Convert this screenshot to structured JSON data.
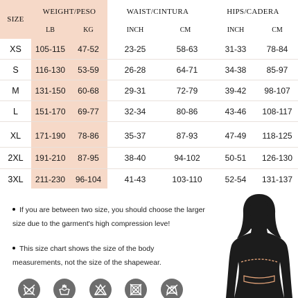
{
  "table": {
    "size_header": "SIZE",
    "weight_header": "WEIGHT/PESO",
    "waist_header": "WAIST/CINTURA",
    "hips_header": "HIPS/CADERA",
    "sub": {
      "lb": "LB",
      "kg": "KG",
      "inch1": "INCH",
      "cm1": "CM",
      "inch2": "INCH",
      "cm2": "CM"
    },
    "rows": [
      {
        "size": "XS",
        "lb": "105-115",
        "kg": "47-52",
        "waist_in": "23-25",
        "waist_cm": "58-63",
        "hips_in": "31-33",
        "hips_cm": "78-84"
      },
      {
        "size": "S",
        "lb": "116-130",
        "kg": "53-59",
        "waist_in": "26-28",
        "waist_cm": "64-71",
        "hips_in": "34-38",
        "hips_cm": "85-97"
      },
      {
        "size": "M",
        "lb": "131-150",
        "kg": "60-68",
        "waist_in": "29-31",
        "waist_cm": "72-79",
        "hips_in": "39-42",
        "hips_cm": "98-107"
      },
      {
        "size": "L",
        "lb": "151-170",
        "kg": "69-77",
        "waist_in": "32-34",
        "waist_cm": "80-86",
        "hips_in": "43-46",
        "hips_cm": "108-117"
      },
      {
        "size": "XL",
        "lb": "171-190",
        "kg": "78-86",
        "waist_in": "35-37",
        "waist_cm": "87-93",
        "hips_in": "47-49",
        "hips_cm": "118-125"
      },
      {
        "size": "2XL",
        "lb": "191-210",
        "kg": "87-95",
        "waist_in": "38-40",
        "waist_cm": "94-102",
        "hips_in": "50-51",
        "hips_cm": "126-130"
      },
      {
        "size": "3XL",
        "lb": "211-230",
        "kg": "96-104",
        "waist_in": "41-43",
        "waist_cm": "103-110",
        "hips_in": "52-54",
        "hips_cm": "131-137"
      }
    ]
  },
  "notes": {
    "note1_line1": "If you are between two size, you should choose the larger",
    "note1_line2": "size due to the garment's high compression leve!",
    "note2_line1": "This size chart shows the size of the body",
    "note2_line2": "measurements, not the size of the shapewear."
  },
  "care_icons": [
    "no-wash-icon",
    "hand-wash-icon",
    "no-bleach-icon",
    "no-tumble-dry-icon",
    "no-iron-icon"
  ],
  "colors": {
    "header_fill": "#f6d9c8",
    "icon_fill": "#6d6d6d",
    "body_fill": "#1c1c1c",
    "measure_line": "#e6a57a"
  }
}
